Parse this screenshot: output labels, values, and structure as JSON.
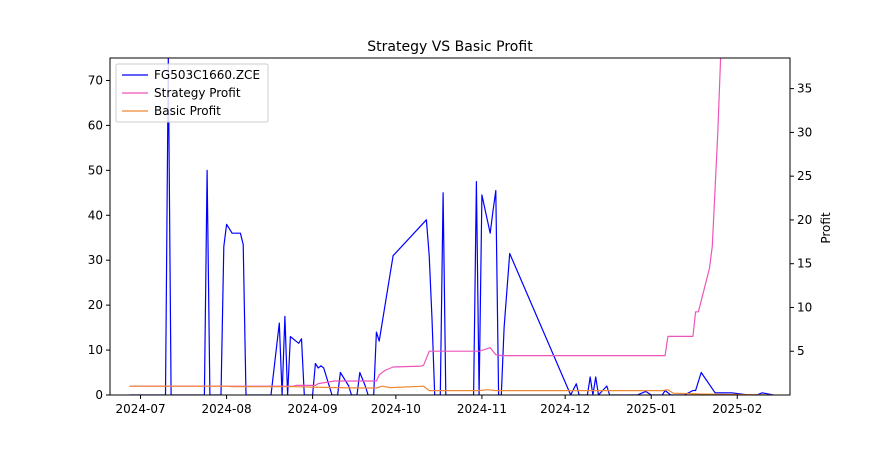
{
  "chart_data": {
    "type": "line",
    "title": "Strategy VS Basic Profit",
    "xlabel": "",
    "ylabel_left": "",
    "ylabel_right": "Profit",
    "left_ylim": [
      0,
      75
    ],
    "right_ylim": [
      0,
      38.5
    ],
    "left_yticks": [
      0,
      10,
      20,
      30,
      40,
      50,
      60,
      70
    ],
    "right_yticks": [
      5,
      10,
      15,
      20,
      25,
      30,
      35
    ],
    "xlim": [
      "2024-06-20",
      "2025-02-20"
    ],
    "x_tick_labels": [
      "2024-07",
      "2024-08",
      "2024-09",
      "2024-10",
      "2024-11",
      "2024-12",
      "2025-01",
      "2025-02"
    ],
    "x_tick_dates": [
      "2024-07-01",
      "2024-08-01",
      "2024-09-01",
      "2024-10-01",
      "2024-11-01",
      "2024-12-01",
      "2025-01-01",
      "2025-02-01"
    ],
    "grid": false,
    "legend_position": "top-left",
    "series": [
      {
        "name": "FG503C1660.ZCE",
        "axis": "left",
        "color": "#0000ff",
        "points": [
          [
            "2024-06-27",
            0
          ],
          [
            "2024-07-10",
            0
          ],
          [
            "2024-07-11",
            75
          ],
          [
            "2024-07-12",
            0
          ],
          [
            "2024-07-24",
            0
          ],
          [
            "2024-07-25",
            50
          ],
          [
            "2024-07-26",
            0
          ],
          [
            "2024-07-30",
            0
          ],
          [
            "2024-07-31",
            33
          ],
          [
            "2024-08-01",
            38
          ],
          [
            "2024-08-02",
            37
          ],
          [
            "2024-08-03",
            36
          ],
          [
            "2024-08-05",
            36
          ],
          [
            "2024-08-06",
            36
          ],
          [
            "2024-08-07",
            33.5
          ],
          [
            "2024-08-08",
            0
          ],
          [
            "2024-08-17",
            0
          ],
          [
            "2024-08-20",
            16
          ],
          [
            "2024-08-21",
            0
          ],
          [
            "2024-08-22",
            17.5
          ],
          [
            "2024-08-23",
            0
          ],
          [
            "2024-08-24",
            13
          ],
          [
            "2024-08-27",
            11.5
          ],
          [
            "2024-08-28",
            12.5
          ],
          [
            "2024-08-29",
            0
          ],
          [
            "2024-09-01",
            0
          ],
          [
            "2024-09-02",
            7
          ],
          [
            "2024-09-03",
            6
          ],
          [
            "2024-09-04",
            6.5
          ],
          [
            "2024-09-05",
            6
          ],
          [
            "2024-09-08",
            0
          ],
          [
            "2024-09-10",
            0
          ],
          [
            "2024-09-11",
            5
          ],
          [
            "2024-09-14",
            2
          ],
          [
            "2024-09-15",
            0
          ],
          [
            "2024-09-17",
            0
          ],
          [
            "2024-09-18",
            5
          ],
          [
            "2024-09-20",
            2
          ],
          [
            "2024-09-21",
            0
          ],
          [
            "2024-09-23",
            0
          ],
          [
            "2024-09-24",
            14
          ],
          [
            "2024-09-25",
            12
          ],
          [
            "2024-09-30",
            31
          ],
          [
            "2024-10-12",
            39
          ],
          [
            "2024-10-13",
            31
          ],
          [
            "2024-10-14",
            17
          ],
          [
            "2024-10-15",
            0
          ],
          [
            "2024-10-17",
            0
          ],
          [
            "2024-10-18",
            45
          ],
          [
            "2024-10-19",
            0
          ],
          [
            "2024-10-29",
            0
          ],
          [
            "2024-10-30",
            47.5
          ],
          [
            "2024-10-31",
            0
          ],
          [
            "2024-11-01",
            44.5
          ],
          [
            "2024-11-04",
            36
          ],
          [
            "2024-11-05",
            41
          ],
          [
            "2024-11-06",
            45.5
          ],
          [
            "2024-11-07",
            0
          ],
          [
            "2024-11-08",
            0
          ],
          [
            "2024-11-09",
            15
          ],
          [
            "2024-11-11",
            31.5
          ],
          [
            "2024-12-03",
            0
          ],
          [
            "2024-12-05",
            2.5
          ],
          [
            "2024-12-06",
            0
          ],
          [
            "2024-12-09",
            0
          ],
          [
            "2024-12-10",
            4
          ],
          [
            "2024-12-11",
            0
          ],
          [
            "2024-12-12",
            4
          ],
          [
            "2024-12-13",
            0
          ],
          [
            "2024-12-16",
            2
          ],
          [
            "2024-12-17",
            0
          ],
          [
            "2024-12-27",
            0
          ],
          [
            "2024-12-30",
            0.8
          ],
          [
            "2025-01-01",
            0
          ],
          [
            "2025-01-05",
            0
          ],
          [
            "2025-01-06",
            1
          ],
          [
            "2025-01-08",
            0
          ],
          [
            "2025-01-13",
            0
          ],
          [
            "2025-01-16",
            1
          ],
          [
            "2025-01-17",
            1
          ],
          [
            "2025-01-19",
            5
          ],
          [
            "2025-01-24",
            0.5
          ],
          [
            "2025-01-30",
            0.5
          ],
          [
            "2025-02-05",
            0
          ],
          [
            "2025-02-08",
            0
          ],
          [
            "2025-02-10",
            0.5
          ],
          [
            "2025-02-14",
            0
          ]
        ]
      },
      {
        "name": "Strategy Profit",
        "axis": "right",
        "color": "#ee55bb",
        "points": [
          [
            "2024-06-27",
            1.0
          ],
          [
            "2024-08-10",
            1.0
          ],
          [
            "2024-08-25",
            1.0
          ],
          [
            "2024-08-26",
            1.1
          ],
          [
            "2024-09-02",
            1.1
          ],
          [
            "2024-09-03",
            1.3
          ],
          [
            "2024-09-09",
            1.6
          ],
          [
            "2024-09-24",
            1.6
          ],
          [
            "2024-09-25",
            2.3
          ],
          [
            "2024-09-27",
            2.8
          ],
          [
            "2024-09-30",
            3.2
          ],
          [
            "2024-10-10",
            3.3
          ],
          [
            "2024-10-11",
            3.4
          ],
          [
            "2024-10-13",
            5.0
          ],
          [
            "2024-10-31",
            5.0
          ],
          [
            "2024-11-03",
            5.3
          ],
          [
            "2024-11-04",
            5.4
          ],
          [
            "2024-11-06",
            4.6
          ],
          [
            "2024-11-08",
            4.5
          ],
          [
            "2025-01-06",
            4.5
          ],
          [
            "2025-01-07",
            6.7
          ],
          [
            "2025-01-16",
            6.7
          ],
          [
            "2025-01-17",
            9.5
          ],
          [
            "2025-01-18",
            9.5
          ],
          [
            "2025-01-22",
            14.5
          ],
          [
            "2025-01-23",
            17
          ],
          [
            "2025-01-25",
            30
          ],
          [
            "2025-01-26",
            38.5
          ]
        ]
      },
      {
        "name": "Basic Profit",
        "axis": "right",
        "color": "#ee8833",
        "points": [
          [
            "2024-06-27",
            1.0
          ],
          [
            "2024-08-01",
            1.0
          ],
          [
            "2024-08-03",
            0.95
          ],
          [
            "2024-08-25",
            0.95
          ],
          [
            "2024-09-01",
            0.9
          ],
          [
            "2024-09-09",
            0.85
          ],
          [
            "2024-09-20",
            0.8
          ],
          [
            "2024-09-24",
            0.8
          ],
          [
            "2024-09-26",
            1.0
          ],
          [
            "2024-09-29",
            0.85
          ],
          [
            "2024-10-11",
            1.0
          ],
          [
            "2024-10-13",
            0.5
          ],
          [
            "2024-10-31",
            0.5
          ],
          [
            "2024-11-03",
            0.6
          ],
          [
            "2024-11-06",
            0.5
          ],
          [
            "2025-01-05",
            0.5
          ],
          [
            "2025-01-07",
            0.6
          ],
          [
            "2025-01-09",
            0.2
          ],
          [
            "2025-01-20",
            0.1
          ],
          [
            "2025-02-14",
            0.0
          ]
        ]
      }
    ]
  }
}
